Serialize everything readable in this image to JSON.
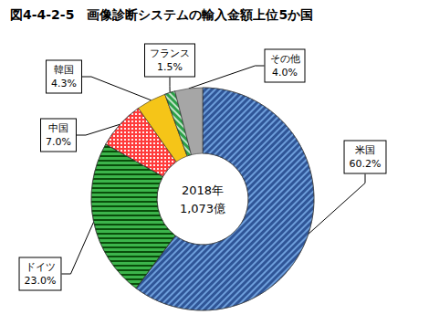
{
  "chart_data": {
    "type": "pie",
    "title": "図4-4-2-5　画像診断システムの輸入金額上位5か国",
    "categories": [
      "米国",
      "ドイツ",
      "中国",
      "韓国",
      "フランス",
      "その他"
    ],
    "values": [
      60.2,
      23.0,
      7.0,
      4.3,
      1.5,
      4.0
    ],
    "value_labels": [
      "60.2%",
      "23.0%",
      "7.0%",
      "4.3%",
      "1.5%",
      "4.0%"
    ],
    "colors": [
      "#2f5597",
      "#3cb44b",
      "#ff3b3b",
      "#f5c518",
      "#2ca048",
      "#a6a6a6"
    ],
    "data_labels": true,
    "annotations": [
      "2018年",
      "1,073億"
    ]
  }
}
